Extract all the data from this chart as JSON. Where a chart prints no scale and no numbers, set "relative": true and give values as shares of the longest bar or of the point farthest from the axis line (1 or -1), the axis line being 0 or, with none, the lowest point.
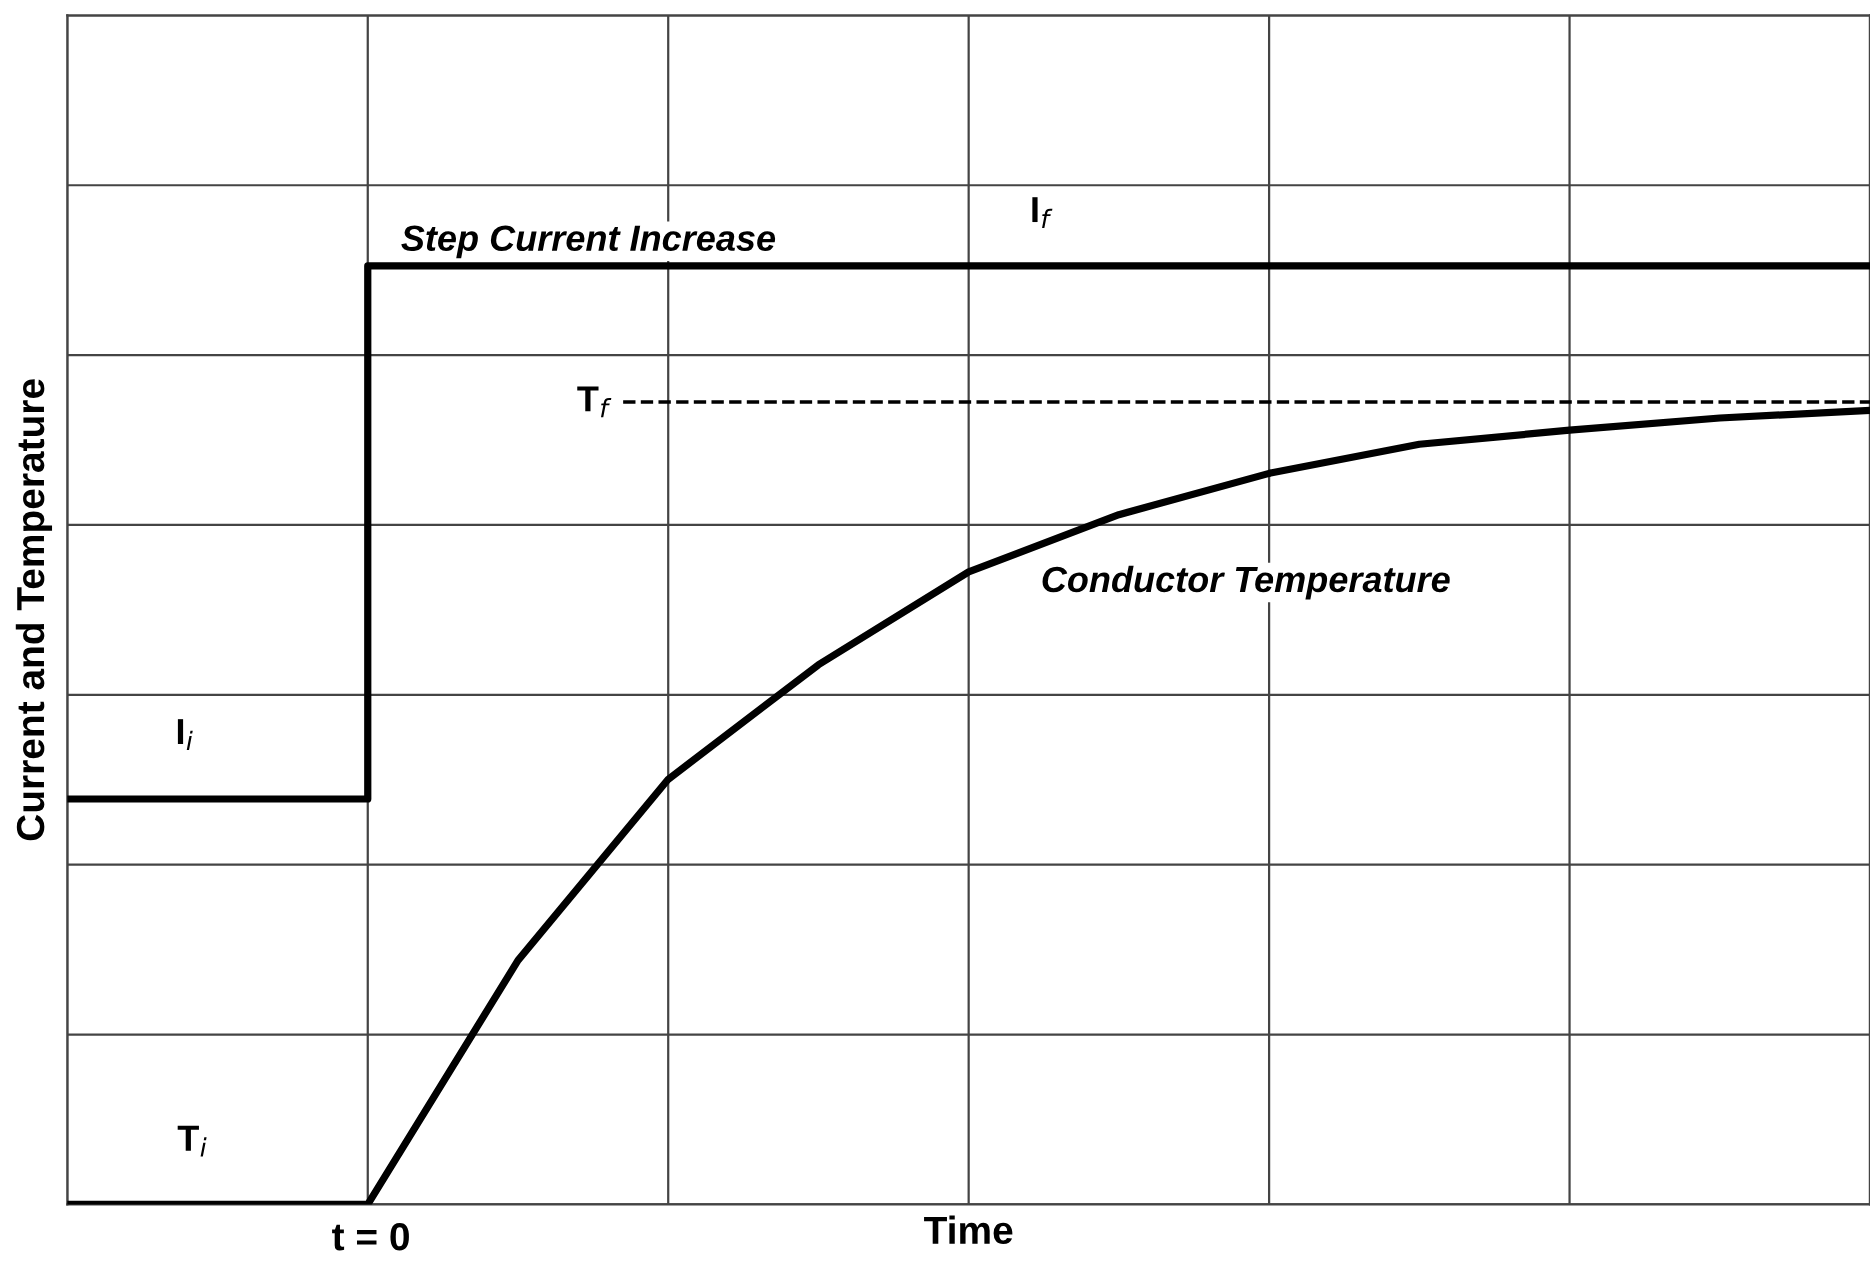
{
  "chart_data": {
    "type": "line",
    "relative": true,
    "xlabel": "Time",
    "ylabel": "Current and Temperature",
    "categories": [
      null,
      null,
      null,
      null,
      null,
      null,
      null,
      null,
      null,
      null,
      null,
      null,
      null
    ],
    "grid": true,
    "legend": false,
    "marker": "none",
    "line_style": "solid",
    "series": [
      {
        "type": "step",
        "color": "#000000",
        "values": [
          0.432,
          0.432,
          1,
          1,
          1,
          1,
          1,
          1,
          1,
          1,
          1,
          1,
          1
        ]
      },
      {
        "color": "#000000",
        "values": [
          0,
          0,
          0,
          0.26,
          0.453,
          0.575,
          0.674,
          0.735,
          0.779,
          0.81,
          0.825,
          0.838,
          0.846
        ]
      }
    ],
    "ref_lines": [
      {
        "axis": "y",
        "value": 0.855,
        "label": "T$_{f}$",
        "line_style": "dashed",
        "color": "#000000"
      }
    ],
    "annotations": [
      "Step Current Increase",
      "I$_{f}$",
      "Conductor Temperature",
      "I$_{i}$",
      "T$_{i}$",
      "t = 0"
    ]
  }
}
